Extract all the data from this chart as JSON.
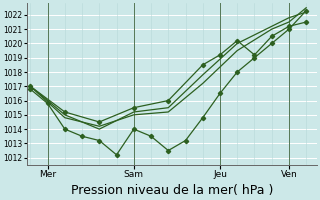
{
  "background_color": "#cce8e8",
  "grid_color": "#b0d0d0",
  "line_color": "#2d6020",
  "xlabel": "Pression niveau de la mer( hPa )",
  "xlabel_fontsize": 9,
  "ylim": [
    1011.5,
    1022.8
  ],
  "yticks": [
    1012,
    1013,
    1014,
    1015,
    1016,
    1017,
    1018,
    1019,
    1020,
    1021,
    1022
  ],
  "day_labels": [
    "Mer",
    "Sam",
    "Jeu",
    "Ven"
  ],
  "day_positions": [
    0.5,
    3.0,
    5.5,
    7.5
  ],
  "vline_positions": [
    0.5,
    3.0,
    5.5,
    7.5
  ],
  "xlim": [
    -0.1,
    8.3
  ],
  "smooth1_x": [
    0,
    1,
    2,
    3,
    4,
    5,
    6,
    7,
    7.5,
    8.0
  ],
  "smooth1_y": [
    1017.0,
    1014.8,
    1014.2,
    1015.0,
    1015.2,
    1017.2,
    1019.5,
    1021.0,
    1021.5,
    1022.5
  ],
  "smooth2_x": [
    0,
    1,
    2,
    3,
    4,
    5,
    6,
    7,
    7.5,
    8.0
  ],
  "smooth2_y": [
    1017.0,
    1015.0,
    1014.0,
    1015.2,
    1015.5,
    1017.8,
    1020.0,
    1021.2,
    1021.8,
    1022.2
  ],
  "smooth3_x": [
    0,
    1,
    2,
    3,
    4,
    5,
    5.5,
    6,
    6.5,
    7,
    7.5,
    8.0
  ],
  "smooth3_y": [
    1017.0,
    1015.2,
    1014.5,
    1015.5,
    1016.0,
    1018.5,
    1019.2,
    1020.2,
    1019.2,
    1020.5,
    1021.2,
    1021.5
  ],
  "zigzag_x": [
    0,
    0.5,
    1.0,
    1.5,
    2.0,
    2.5,
    3.0,
    3.5,
    4.0,
    4.5,
    5.0,
    5.5,
    6.0,
    6.5,
    7.0,
    7.5,
    8.0
  ],
  "zigzag_y": [
    1016.8,
    1015.8,
    1014.0,
    1013.5,
    1013.2,
    1012.2,
    1014.0,
    1013.5,
    1012.5,
    1013.2,
    1014.8,
    1016.5,
    1018.0,
    1019.0,
    1020.0,
    1021.0,
    1022.3
  ]
}
